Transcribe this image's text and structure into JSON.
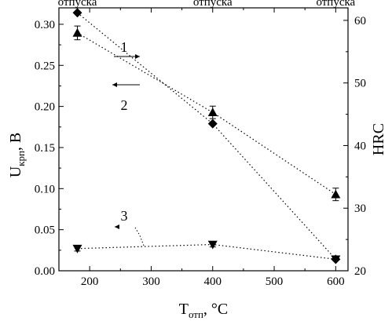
{
  "chart_data": {
    "type": "scatter",
    "top_labels": [
      "отпуска",
      "отпуска",
      "отпуска"
    ],
    "left_axis": {
      "label_main": "U",
      "label_sub": "крп",
      "label_unit": ", В",
      "range": [
        0,
        0.32
      ],
      "ticks": [
        "0.00",
        "0.05",
        "0.10",
        "0.15",
        "0.20",
        "0.25",
        "0.30"
      ]
    },
    "right_axis": {
      "label": "HRC",
      "range": [
        20,
        62
      ],
      "ticks": [
        "20",
        "30",
        "40",
        "50",
        "60"
      ]
    },
    "x_axis": {
      "label_main": "T",
      "label_sub": "отп",
      "label_unit": ", °C",
      "range": [
        150,
        620
      ],
      "ticks": [
        "200",
        "300",
        "400",
        "500",
        "600"
      ]
    },
    "series": [
      {
        "name": "1",
        "marker": "diamond",
        "axis": "left",
        "x": [
          180,
          400,
          600
        ],
        "y": [
          0.314,
          0.179,
          0.014
        ],
        "err": [
          0,
          0,
          0
        ]
      },
      {
        "name": "2",
        "marker": "triangle-up",
        "axis": "right",
        "x": [
          180,
          400,
          600
        ],
        "y": [
          58.0,
          45.3,
          32.2
        ],
        "err": [
          1.1,
          1.0,
          1.0
        ]
      },
      {
        "name": "3",
        "marker": "triangle-down",
        "axis": "left",
        "x": [
          180,
          400,
          600
        ],
        "y": [
          0.027,
          0.032,
          0.014
        ],
        "err": [
          0.003,
          0.003,
          0
        ]
      }
    ],
    "annotations": [
      {
        "text": "1",
        "arrow": "right"
      },
      {
        "text": "2",
        "arrow": "left"
      },
      {
        "text": "3",
        "arrow": "left"
      }
    ],
    "grid": false,
    "legend": "none"
  }
}
